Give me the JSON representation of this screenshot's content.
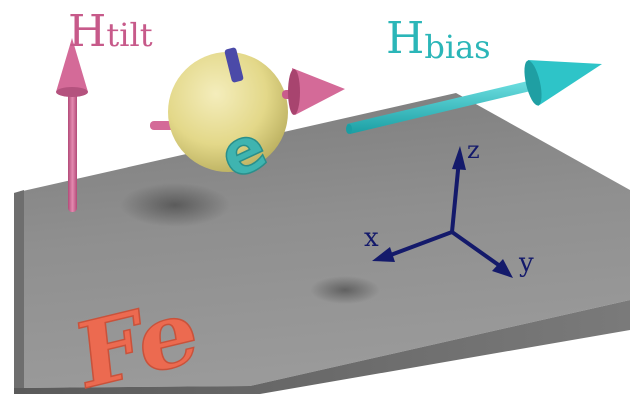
{
  "labels": {
    "h_tilt_main": "H",
    "h_tilt_sub": "tilt",
    "h_bias_main": "H",
    "h_bias_sub": "bias",
    "material": "Fe",
    "spin_symbol": "e",
    "axis_x": "x",
    "axis_y": "y",
    "axis_z": "z"
  },
  "colors": {
    "tilt_arrow": "#d46a98",
    "bias_arrow": "#2ec4c8",
    "tilt_label": "#c75a8a",
    "bias_label": "#2bb6b8",
    "material_letters": "#ec6a50",
    "electron_sphere": "#e7dc8f",
    "electron_symbol": "#3fb4b0",
    "axes": "#141a6b",
    "slab_top": "#8c8c8c",
    "slab_side": "#6a6a6a"
  }
}
